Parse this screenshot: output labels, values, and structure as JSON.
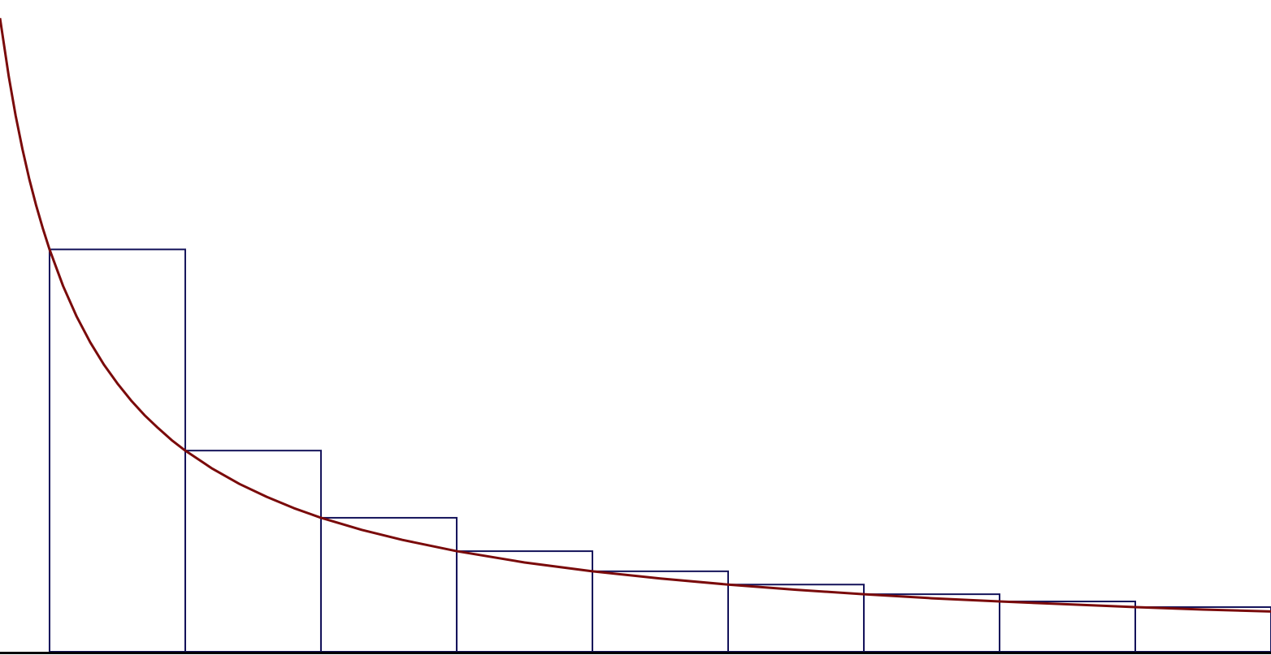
{
  "chart_data": [
    {
      "type": "histogram",
      "bins": [
        1,
        2,
        3,
        4,
        5,
        6,
        7,
        8,
        9,
        10
      ],
      "values": [
        1,
        0.5,
        0.333,
        0.25,
        0.2,
        0.167,
        0.143,
        0.125,
        0.111
      ],
      "color": "#14135a",
      "xlim": [
        0.635,
        10
      ],
      "ylim": [
        0,
        1.62
      ]
    },
    {
      "type": "line",
      "x": [
        0.635,
        0.7,
        0.75,
        0.8,
        0.85,
        0.9,
        0.95,
        1,
        1.1,
        1.2,
        1.3,
        1.4,
        1.5,
        1.6,
        1.7,
        1.8,
        1.9,
        2,
        2.2,
        2.4,
        2.6,
        2.8,
        3,
        3.3,
        3.6,
        4,
        4.5,
        5,
        5.5,
        6,
        6.5,
        7,
        7.5,
        8,
        8.5,
        9,
        9.5,
        10
      ],
      "values": [
        1.575,
        1.429,
        1.333,
        1.25,
        1.176,
        1.111,
        1.053,
        1,
        0.909,
        0.833,
        0.769,
        0.714,
        0.667,
        0.625,
        0.588,
        0.556,
        0.526,
        0.5,
        0.455,
        0.417,
        0.385,
        0.357,
        0.333,
        0.303,
        0.278,
        0.25,
        0.222,
        0.2,
        0.182,
        0.167,
        0.154,
        0.143,
        0.133,
        0.125,
        0.118,
        0.111,
        0.105,
        0.1
      ],
      "color": "#7a0a0a",
      "xlim": [
        0.635,
        10
      ],
      "ylim": [
        0,
        1.62
      ]
    }
  ]
}
